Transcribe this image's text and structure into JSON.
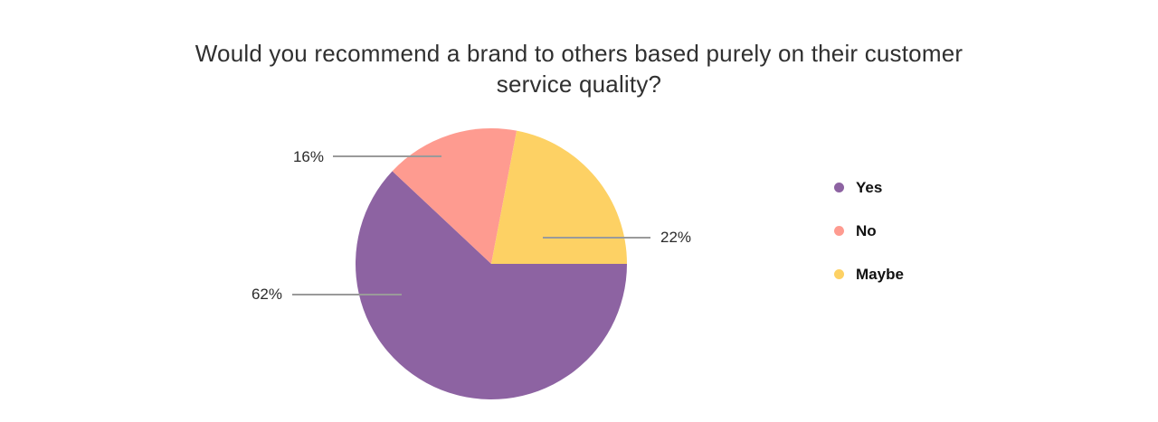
{
  "chart_data": {
    "type": "pie",
    "title": "Would you recommend a brand to others based purely on their customer service quality?",
    "slices": [
      {
        "label": "Yes",
        "value": 62,
        "display": "62%",
        "color": "#8d63a2"
      },
      {
        "label": "No",
        "value": 16,
        "display": "16%",
        "color": "#fe9b90"
      },
      {
        "label": "Maybe",
        "value": 22,
        "display": "22%",
        "color": "#fdd164"
      }
    ],
    "start_angle_deg": 0,
    "direction": "clockwise",
    "legend_position": "right",
    "legend_marker": "dot-icon",
    "background_color": "#ffffff",
    "title_color": "#303030",
    "label_color": "#2b2b2b",
    "callout_line_color": "#9a9a9a",
    "grid": "off"
  }
}
